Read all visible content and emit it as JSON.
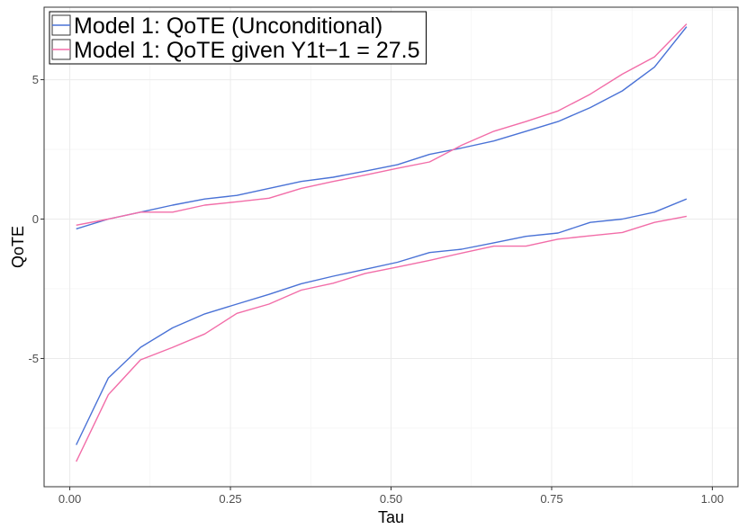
{
  "chart_data": {
    "type": "line",
    "xlabel": "Tau",
    "ylabel": "QoTE",
    "xlim": [
      -0.04,
      1.04
    ],
    "ylim": [
      -9.6,
      7.6
    ],
    "x_ticks": [
      0.0,
      0.25,
      0.5,
      0.75,
      1.0
    ],
    "x_tick_labels": [
      "0.00",
      "0.25",
      "0.50",
      "0.75",
      "1.00"
    ],
    "y_ticks": [
      -5,
      0,
      5
    ],
    "y_tick_labels": [
      "-5",
      "0",
      "5"
    ],
    "grid": true,
    "legend_position": "top-left",
    "x": [
      0.01,
      0.06,
      0.11,
      0.16,
      0.21,
      0.26,
      0.31,
      0.36,
      0.41,
      0.46,
      0.51,
      0.56,
      0.61,
      0.66,
      0.71,
      0.76,
      0.81,
      0.86,
      0.91,
      0.96
    ],
    "series": [
      {
        "name": "Model 1: QoTE (Unconditional)",
        "color": "#4a72d6",
        "bands": [
          [
            -0.35,
            0.0,
            0.25,
            0.5,
            0.72,
            0.85,
            1.1,
            1.35,
            1.5,
            1.72,
            1.95,
            2.32,
            2.55,
            2.8,
            3.15,
            3.5,
            4.0,
            4.6,
            5.45,
            6.9
          ],
          [
            -8.1,
            -5.7,
            -4.6,
            -3.9,
            -3.4,
            -3.05,
            -2.7,
            -2.32,
            -2.05,
            -1.8,
            -1.55,
            -1.2,
            -1.08,
            -0.85,
            -0.62,
            -0.5,
            -0.12,
            0.0,
            0.25,
            0.72
          ]
        ]
      },
      {
        "name": "Model 1: QoTE given Y1t−1 = 27.5",
        "color": "#f26da8",
        "bands": [
          [
            -0.22,
            0.0,
            0.25,
            0.25,
            0.5,
            0.62,
            0.75,
            1.1,
            1.35,
            1.58,
            1.82,
            2.05,
            2.65,
            3.15,
            3.5,
            3.88,
            4.48,
            5.2,
            5.82,
            7.0
          ],
          [
            -8.7,
            -6.3,
            -5.05,
            -4.6,
            -4.12,
            -3.38,
            -3.05,
            -2.55,
            -2.3,
            -1.95,
            -1.72,
            -1.48,
            -1.22,
            -0.97,
            -0.97,
            -0.72,
            -0.6,
            -0.48,
            -0.12,
            0.1
          ]
        ]
      }
    ]
  }
}
